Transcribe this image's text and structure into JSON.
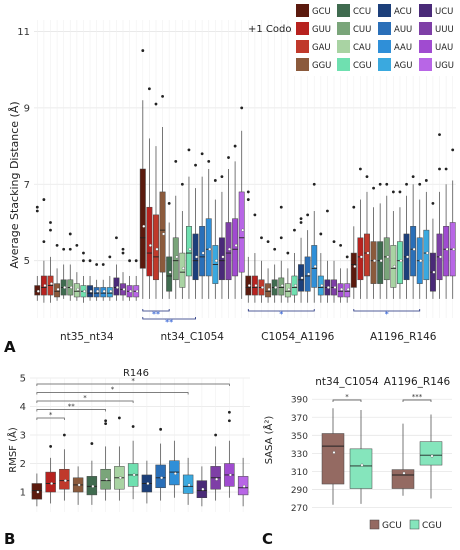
{
  "panel_labels": [
    "A",
    "B",
    "C"
  ],
  "codon_colors": {
    "GCU": "#5b1a0e",
    "GUU": "#b7221f",
    "GAU": "#c0392b",
    "GGU": "#8b5a3c",
    "CCU": "#3f6b4f",
    "CUU": "#7aa57a",
    "CAU": "#a9d3a3",
    "CGU": "#6fe0b0",
    "ACU": "#1c3f7a",
    "AUU": "#2a6fb8",
    "AAU": "#2f8fd8",
    "AGU": "#3aa9df",
    "UCU": "#4a2a78",
    "UUU": "#7e3fa6",
    "UAU": "#a04bd0",
    "UGU": "#b866e6"
  },
  "chart_data": [
    {
      "type": "box",
      "panel": "A",
      "title": "",
      "xlabel": "",
      "ylabel": "Average Stacking Distance (Å)",
      "ylim": [
        3.5,
        11.3
      ],
      "yticks": [
        5,
        7,
        9,
        11
      ],
      "grid": true,
      "legend": {
        "title": "+1 Codon",
        "placement": "top-right",
        "columns": [
          [
            "GCU",
            "GUU",
            "GAU",
            "GGU"
          ],
          [
            "CCU",
            "CUU",
            "CAU",
            "CGU"
          ],
          [
            "ACU",
            "AUU",
            "AAU",
            "AGU"
          ],
          [
            "UCU",
            "UUU",
            "UAU",
            "UGU"
          ]
        ]
      },
      "categories": [
        "nt35_nt34",
        "nt34_C1054",
        "C1054_A1196",
        "A1196_R146"
      ],
      "series_order": [
        "GCU",
        "GUU",
        "GAU",
        "GGU",
        "CCU",
        "CUU",
        "CAU",
        "CGU",
        "ACU",
        "AUU",
        "AAU",
        "AGU",
        "UCU",
        "UUU",
        "UAU",
        "UGU"
      ],
      "boxes": [
        [
          [
            3.95,
            4.1,
            4.2,
            4.35,
            4.6
          ],
          [
            3.9,
            4.1,
            4.3,
            4.6,
            5.0
          ],
          [
            3.9,
            4.1,
            4.35,
            4.6,
            5.1
          ],
          [
            3.95,
            4.05,
            4.2,
            4.4,
            4.8
          ],
          [
            4.0,
            4.1,
            4.3,
            4.5,
            4.9
          ],
          [
            3.95,
            4.1,
            4.3,
            4.5,
            4.9
          ],
          [
            3.95,
            4.05,
            4.2,
            4.4,
            4.7
          ],
          [
            3.9,
            4.05,
            4.2,
            4.35,
            4.6
          ],
          [
            3.95,
            4.05,
            4.15,
            4.35,
            4.6
          ],
          [
            3.95,
            4.05,
            4.15,
            4.3,
            4.5
          ],
          [
            3.95,
            4.05,
            4.15,
            4.3,
            4.5
          ],
          [
            3.95,
            4.05,
            4.15,
            4.3,
            4.6
          ],
          [
            3.95,
            4.1,
            4.3,
            4.55,
            4.9
          ],
          [
            3.95,
            4.1,
            4.25,
            4.4,
            4.7
          ],
          [
            3.95,
            4.05,
            4.2,
            4.35,
            4.6
          ],
          [
            3.95,
            4.05,
            4.2,
            4.35,
            4.6
          ]
        ],
        [
          [
            4.0,
            4.8,
            5.6,
            7.4,
            9.2
          ],
          [
            4.0,
            4.6,
            5.2,
            6.4,
            8.2
          ],
          [
            4.0,
            4.5,
            5.1,
            6.2,
            8.0
          ],
          [
            4.0,
            4.7,
            5.8,
            6.8,
            8.5
          ],
          [
            4.0,
            4.2,
            4.6,
            5.1,
            6.0
          ],
          [
            4.0,
            4.5,
            5.0,
            5.6,
            6.7
          ],
          [
            4.0,
            4.3,
            4.7,
            5.2,
            6.3
          ],
          [
            4.0,
            4.6,
            5.2,
            5.9,
            7.2
          ],
          [
            4.0,
            4.5,
            5.0,
            5.7,
            6.9
          ],
          [
            4.0,
            4.6,
            5.1,
            5.9,
            7.2
          ],
          [
            4.0,
            4.6,
            5.3,
            6.1,
            7.4
          ],
          [
            4.0,
            4.4,
            4.9,
            5.4,
            6.6
          ],
          [
            4.0,
            4.5,
            5.0,
            5.6,
            6.8
          ],
          [
            4.0,
            4.5,
            5.2,
            6.0,
            7.4
          ],
          [
            4.0,
            4.6,
            5.3,
            6.1,
            7.6
          ],
          [
            4.0,
            4.7,
            5.6,
            6.8,
            8.4
          ]
        ],
        [
          [
            3.9,
            4.1,
            4.3,
            4.6,
            5.1
          ],
          [
            3.9,
            4.1,
            4.3,
            4.6,
            5.2
          ],
          [
            3.9,
            4.1,
            4.3,
            4.5,
            5.0
          ],
          [
            3.9,
            4.05,
            4.2,
            4.4,
            4.8
          ],
          [
            3.9,
            4.1,
            4.3,
            4.5,
            4.9
          ],
          [
            3.9,
            4.1,
            4.3,
            4.55,
            5.0
          ],
          [
            3.9,
            4.05,
            4.2,
            4.4,
            4.8
          ],
          [
            3.9,
            4.1,
            4.3,
            4.6,
            5.2
          ],
          [
            3.9,
            4.2,
            4.5,
            4.9,
            5.6
          ],
          [
            3.9,
            4.2,
            4.6,
            5.1,
            5.8
          ],
          [
            3.9,
            4.3,
            4.8,
            5.4,
            6.3
          ],
          [
            3.9,
            4.1,
            4.3,
            4.6,
            5.2
          ],
          [
            3.9,
            4.1,
            4.3,
            4.5,
            5.0
          ],
          [
            3.9,
            4.1,
            4.3,
            4.5,
            5.0
          ],
          [
            3.9,
            4.05,
            4.2,
            4.4,
            4.8
          ],
          [
            3.9,
            4.05,
            4.2,
            4.4,
            4.8
          ]
        ],
        [
          [
            4.0,
            4.3,
            4.9,
            5.2,
            5.9
          ],
          [
            4.0,
            4.5,
            5.1,
            5.6,
            6.6
          ],
          [
            4.0,
            4.6,
            5.2,
            5.7,
            6.8
          ],
          [
            4.0,
            4.4,
            5.0,
            5.5,
            6.4
          ],
          [
            4.0,
            4.4,
            5.0,
            5.5,
            6.5
          ],
          [
            4.0,
            4.5,
            5.1,
            5.6,
            6.7
          ],
          [
            4.0,
            4.3,
            4.8,
            5.4,
            6.3
          ],
          [
            4.0,
            4.4,
            5.0,
            5.5,
            6.4
          ],
          [
            4.0,
            4.5,
            5.1,
            5.7,
            6.7
          ],
          [
            4.0,
            4.6,
            5.3,
            5.9,
            7.0
          ],
          [
            4.0,
            4.4,
            5.0,
            5.6,
            6.6
          ],
          [
            4.0,
            4.5,
            5.2,
            5.8,
            6.8
          ],
          [
            4.0,
            4.2,
            4.7,
            5.2,
            6.1
          ],
          [
            4.0,
            4.5,
            5.1,
            5.7,
            6.8
          ],
          [
            4.0,
            4.6,
            5.3,
            5.9,
            7.0
          ],
          [
            4.0,
            4.6,
            5.3,
            6.0,
            7.1
          ]
        ]
      ],
      "means": [
        [
          4.2,
          4.35,
          4.4,
          4.25,
          4.3,
          4.3,
          4.25,
          4.2,
          4.2,
          4.2,
          4.2,
          4.2,
          4.3,
          4.25,
          4.2,
          4.2
        ],
        [
          5.9,
          5.4,
          5.3,
          5.7,
          4.7,
          5.1,
          4.8,
          5.3,
          5.1,
          5.2,
          5.3,
          5.0,
          5.1,
          5.3,
          5.4,
          5.8
        ],
        [
          4.35,
          4.35,
          4.3,
          4.25,
          4.3,
          4.35,
          4.25,
          4.35,
          4.55,
          4.65,
          4.85,
          4.35,
          4.3,
          4.3,
          4.25,
          4.25
        ],
        [
          4.85,
          5.1,
          5.2,
          5.0,
          5.0,
          5.1,
          4.85,
          5.0,
          5.1,
          5.3,
          5.0,
          5.2,
          4.7,
          5.1,
          5.3,
          5.3
        ]
      ],
      "outliers": [
        [
          [
            6.3,
            6.4
          ],
          [
            6.6,
            5.5
          ],
          [
            5.8,
            6.0
          ],
          [
            5.4
          ],
          [
            5.3
          ],
          [
            5.7,
            5.3
          ],
          [
            5.4
          ],
          [
            5.0,
            5.2
          ],
          [
            5.0
          ],
          [
            4.9
          ],
          [
            4.9
          ],
          [
            5.1
          ],
          [
            5.6
          ],
          [
            5.2,
            5.3
          ],
          [
            5.0
          ],
          [
            5.0
          ]
        ],
        [
          [
            10.5
          ],
          [
            9.5
          ],
          [
            9.1
          ],
          [
            9.3
          ],
          [
            6.5
          ],
          [
            7.6
          ],
          [
            7.0
          ],
          [
            7.9
          ],
          [
            7.5
          ],
          [
            7.8
          ],
          [
            7.6
          ],
          [
            7.1
          ],
          [
            7.2
          ],
          [
            7.7
          ],
          [
            8.0
          ],
          [
            9.0
          ]
        ],
        [
          [
            6.8,
            6.6
          ],
          [
            6.2
          ],
          [
            5.6
          ],
          [
            5.5
          ],
          [
            5.3
          ],
          [
            5.6,
            6.4
          ],
          [
            5.2
          ],
          [
            5.8
          ],
          [
            6.1,
            6.0
          ],
          [
            6.2
          ],
          [
            7.0
          ],
          [
            5.7
          ],
          [
            6.3
          ],
          [
            5.5
          ],
          [
            5.4
          ],
          [
            5.1
          ]
        ],
        [
          [
            6.4
          ],
          [
            7.4
          ],
          [
            7.2
          ],
          [
            6.9
          ],
          [
            7.0
          ],
          [
            7.0
          ],
          [
            6.8
          ],
          [
            6.8
          ],
          [
            7.0
          ],
          [
            7.2
          ],
          [
            7.0
          ],
          [
            7.1
          ],
          [
            6.5
          ],
          [
            7.4,
            8.3
          ],
          [
            7.4
          ],
          [
            7.9
          ]
        ]
      ],
      "significance": [
        {
          "category": "nt34_C1054",
          "label": "**",
          "from": "GCU",
          "to": "CCU"
        },
        {
          "category": "nt34_C1054",
          "label": "**",
          "from": "GCU",
          "to": "ACU"
        },
        {
          "category": "C1054_A1196",
          "label": "*",
          "from": "GCU",
          "to": "AAU"
        },
        {
          "category": "A1196_R146",
          "label": "*",
          "from": "GCU",
          "to": "AAU"
        }
      ]
    },
    {
      "type": "box",
      "panel": "B",
      "title": "R146",
      "xlabel": "",
      "ylabel": "RMSF (Å)",
      "ylim": [
        0.3,
        5.0
      ],
      "yticks": [
        1,
        2,
        3,
        4,
        5
      ],
      "grid": true,
      "series_order": [
        "GCU",
        "GUU",
        "GAU",
        "GGU",
        "CCU",
        "CUU",
        "CAU",
        "CGU",
        "ACU",
        "AUU",
        "AAU",
        "AGU",
        "UCU",
        "UUU",
        "UAU",
        "UGU"
      ],
      "boxes": [
        [
          0.5,
          0.75,
          1.05,
          1.3,
          1.65
        ],
        [
          0.6,
          1.0,
          1.3,
          1.7,
          2.2
        ],
        [
          0.7,
          1.1,
          1.4,
          1.8,
          2.5
        ],
        [
          0.55,
          1.0,
          1.25,
          1.5,
          1.9
        ],
        [
          0.55,
          0.9,
          1.2,
          1.55,
          2.1
        ],
        [
          0.7,
          1.1,
          1.4,
          1.8,
          2.6
        ],
        [
          0.7,
          1.1,
          1.5,
          1.9,
          2.6
        ],
        [
          0.75,
          1.2,
          1.6,
          2.0,
          2.8
        ],
        [
          0.6,
          1.0,
          1.3,
          1.6,
          2.1
        ],
        [
          0.7,
          1.15,
          1.5,
          1.95,
          2.7
        ],
        [
          0.8,
          1.25,
          1.7,
          2.1,
          2.8
        ],
        [
          0.55,
          0.95,
          1.2,
          1.6,
          2.2
        ],
        [
          0.5,
          0.8,
          1.05,
          1.4,
          1.9
        ],
        [
          0.7,
          1.1,
          1.5,
          1.9,
          2.6
        ],
        [
          0.8,
          1.2,
          1.6,
          2.0,
          2.8
        ],
        [
          0.5,
          0.9,
          1.15,
          1.55,
          2.2
        ]
      ],
      "means": [
        1.0,
        1.3,
        1.4,
        1.25,
        1.2,
        1.45,
        1.5,
        1.6,
        1.3,
        1.5,
        1.65,
        1.25,
        1.1,
        1.45,
        1.6,
        1.2
      ],
      "outliers": [
        [],
        [
          2.6
        ],
        [
          3.0
        ],
        [],
        [
          2.7
        ],
        [
          3.5,
          3.4
        ],
        [
          3.6
        ],
        [
          3.3
        ],
        [],
        [
          3.2
        ],
        [],
        [],
        [],
        [
          3.0
        ],
        [
          3.8,
          3.5
        ],
        []
      ],
      "significance": [
        {
          "label": "*",
          "from": "GCU",
          "to": "UAU"
        },
        {
          "label": "*",
          "from": "GCU",
          "to": "AGU"
        },
        {
          "label": "*",
          "from": "GCU",
          "to": "CGU"
        },
        {
          "label": "**",
          "from": "GCU",
          "to": "CUU"
        },
        {
          "label": "*",
          "from": "GCU",
          "to": "GAU"
        }
      ]
    },
    {
      "type": "box",
      "panel": "C",
      "title": "",
      "xlabel": "",
      "ylabel": "SASA (Å²)",
      "ylim": [
        265,
        398
      ],
      "yticks": [
        270,
        290,
        310,
        330,
        350,
        370,
        390
      ],
      "grid": true,
      "legend": {
        "title": "",
        "placement": "bottom",
        "items": [
          "GCU",
          "CGU"
        ]
      },
      "categories": [
        "nt34_C1054",
        "A1196_R146"
      ],
      "series_order": [
        "GCU",
        "CGU"
      ],
      "boxes": [
        [
          [
            273,
            296,
            338,
            352,
            380
          ],
          [
            274,
            291,
            316,
            335,
            378
          ]
        ],
        [
          [
            283,
            291,
            306,
            312,
            363
          ],
          [
            280,
            317,
            328,
            343,
            373
          ]
        ]
      ],
      "means": [
        [
          331,
          317
        ],
        [
          308,
          327
        ]
      ],
      "outliers": [
        [
          [],
          []
        ],
        [
          [],
          []
        ]
      ],
      "significance": [
        {
          "category": "nt34_C1054",
          "label": "*",
          "from": "GCU",
          "to": "CGU"
        },
        {
          "category": "A1196_R146",
          "label": "***",
          "from": "GCU",
          "to": "CGU"
        }
      ]
    }
  ]
}
